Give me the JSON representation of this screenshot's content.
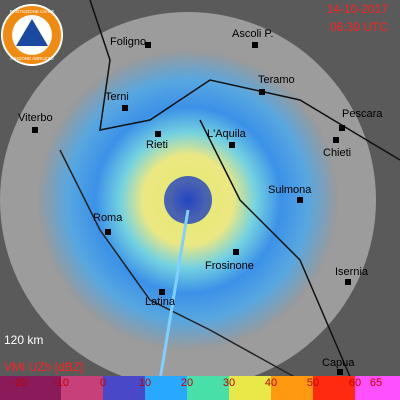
{
  "header": {
    "date": "14-10-2017",
    "time": "06:30 UTC"
  },
  "logo": {
    "top": "PROTEZIONE CIVILE",
    "bottom": "REGIONE ABRUZZO"
  },
  "cities": [
    "Foligno",
    "Ascoli P.",
    "Teramo",
    "Pescara",
    "Terni",
    "Viterbo",
    "Rieti",
    "L'Aquila",
    "Chieti",
    "Sulmona",
    "Roma",
    "Frosinone",
    "Isernia",
    "Latina",
    "Capua"
  ],
  "range_label": "120 km",
  "legend": {
    "title": "VMI UZh [dBZ]",
    "ticks": [
      -20,
      -10,
      0,
      10,
      20,
      30,
      40,
      50,
      60,
      65
    ],
    "colors": [
      "#8b1a5a",
      "#c8407a",
      "#4848c8",
      "#28a8ff",
      "#48e0a8",
      "#e8e848",
      "#ff9a10",
      "#ff2a10",
      "#ff50ff"
    ]
  }
}
